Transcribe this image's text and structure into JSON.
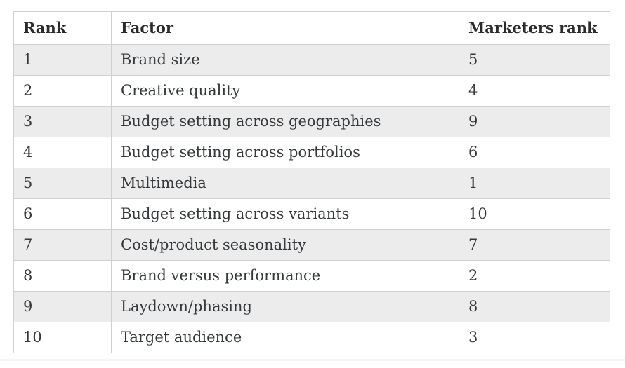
{
  "table": {
    "headers": [
      "Rank",
      "Factor",
      "Marketers rank"
    ],
    "rows": [
      {
        "rank": "1",
        "factor": "Brand size",
        "marketers_rank": "5"
      },
      {
        "rank": "2",
        "factor": "Creative quality",
        "marketers_rank": "4"
      },
      {
        "rank": "3",
        "factor": "Budget setting across geographies",
        "marketers_rank": "9"
      },
      {
        "rank": "4",
        "factor": "Budget setting across portfolios",
        "marketers_rank": "6"
      },
      {
        "rank": "5",
        "factor": "Multimedia",
        "marketers_rank": "1"
      },
      {
        "rank": "6",
        "factor": "Budget setting across variants",
        "marketers_rank": "10"
      },
      {
        "rank": "7",
        "factor": "Cost/product seasonality",
        "marketers_rank": "7"
      },
      {
        "rank": "8",
        "factor": "Brand versus performance",
        "marketers_rank": "2"
      },
      {
        "rank": "9",
        "factor": "Laydown/phasing",
        "marketers_rank": "8"
      },
      {
        "rank": "10",
        "factor": "Target audience",
        "marketers_rank": "3"
      }
    ]
  },
  "chart_data": {
    "type": "table",
    "title": "",
    "columns": [
      "Rank",
      "Factor",
      "Marketers rank"
    ],
    "rows": [
      [
        1,
        "Brand size",
        5
      ],
      [
        2,
        "Creative quality",
        4
      ],
      [
        3,
        "Budget setting across geographies",
        9
      ],
      [
        4,
        "Budget setting across portfolios",
        6
      ],
      [
        5,
        "Multimedia",
        1
      ],
      [
        6,
        "Budget setting across variants",
        10
      ],
      [
        7,
        "Cost/product seasonality",
        7
      ],
      [
        8,
        "Brand versus performance",
        2
      ],
      [
        9,
        "Laydown/phasing",
        8
      ],
      [
        10,
        "Target audience",
        3
      ]
    ],
    "layout": {
      "zebra_striping": true,
      "stripe_rows": "odd data rows shaded"
    }
  },
  "colors": {
    "stripe_background": "#ececec",
    "row_background": "#ffffff",
    "border": "#d0d0d0",
    "header_text": "#2b2b2b",
    "body_text": "#36393c",
    "page_background": "#ffffff"
  }
}
